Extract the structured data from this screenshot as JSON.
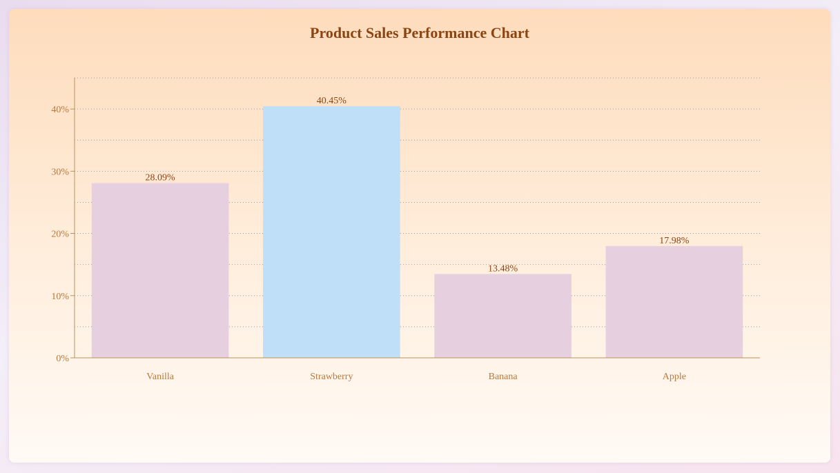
{
  "chart_data": {
    "type": "bar",
    "title": "Product Sales Performance Chart",
    "categories": [
      "Vanilla",
      "Strawberry",
      "Banana",
      "Apple"
    ],
    "values": [
      28.09,
      40.45,
      13.48,
      17.98
    ],
    "value_labels": [
      "28.09%",
      "40.45%",
      "13.48%",
      "17.98%"
    ],
    "ylim": [
      0,
      45
    ],
    "yticks": [
      0,
      10,
      20,
      30,
      40
    ],
    "ytick_labels": [
      "0%",
      "10%",
      "20%",
      "30%",
      "40%"
    ],
    "grid": true,
    "xlabel": "",
    "ylabel": "",
    "colors": {
      "bar": "#e6d0e0",
      "bar_highlight": "#bfdff9",
      "axis": "#b8935a",
      "grid": "#9a9a9a"
    },
    "highlight_index": 1
  }
}
